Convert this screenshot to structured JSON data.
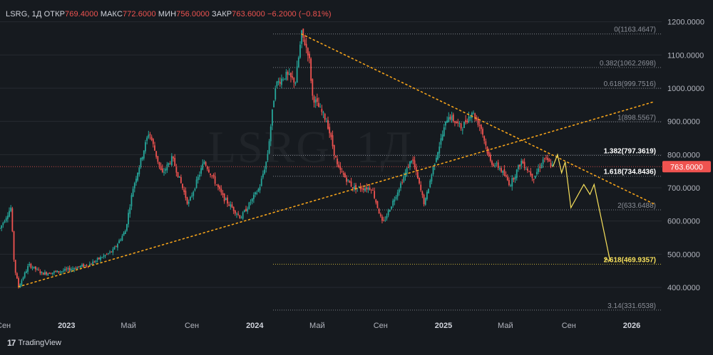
{
  "header": {
    "ticker": "LSRG, 1Д",
    "open_label": "ОТКР",
    "open": "769.4000",
    "high_label": "МАКС",
    "high": "772.6000",
    "low_label": "МИН",
    "low": "756.0000",
    "close_label": "ЗАКР",
    "close": "763.6000",
    "change": "−6.2000 (−0.81%)"
  },
  "watermark": "LSRG, 1Д",
  "footer": {
    "brand": "TradingView"
  },
  "colors": {
    "background": "#161a1f",
    "up": "#26a69a",
    "down": "#ef5350",
    "trendline": "#f5a31a",
    "projection": "#f7e05b",
    "price_label": "#ef5350"
  },
  "chart_data": {
    "type": "candlestick",
    "symbol": "LSRG",
    "timeframe": "1Д",
    "x_ticks": [
      "Сен",
      "2023",
      "Май",
      "Сен",
      "2024",
      "Май",
      "Сен",
      "2025",
      "Май",
      "Сен",
      "2026"
    ],
    "y_ticks": [
      "1200.0000",
      "1100.0000",
      "1000.0000",
      "900.0000",
      "800.0000",
      "700.0000",
      "600.0000",
      "500.0000",
      "400.0000"
    ],
    "ylim": [
      330,
      1230
    ],
    "last_price": "763.6000",
    "price_path": [
      {
        "date": "2022-08-25",
        "price": 578
      },
      {
        "date": "2022-09-15",
        "price": 640
      },
      {
        "date": "2022-09-22",
        "price": 460
      },
      {
        "date": "2022-09-30",
        "price": 402
      },
      {
        "date": "2022-10-20",
        "price": 468
      },
      {
        "date": "2022-11-15",
        "price": 442
      },
      {
        "date": "2022-12-20",
        "price": 448
      },
      {
        "date": "2023-02-15",
        "price": 470
      },
      {
        "date": "2023-04-01",
        "price": 510
      },
      {
        "date": "2023-04-25",
        "price": 570
      },
      {
        "date": "2023-05-10",
        "price": 700
      },
      {
        "date": "2023-06-10",
        "price": 870
      },
      {
        "date": "2023-07-05",
        "price": 740
      },
      {
        "date": "2023-07-25",
        "price": 790
      },
      {
        "date": "2023-08-25",
        "price": 650
      },
      {
        "date": "2023-09-25",
        "price": 780
      },
      {
        "date": "2023-11-01",
        "price": 670
      },
      {
        "date": "2023-12-05",
        "price": 610
      },
      {
        "date": "2024-01-10",
        "price": 700
      },
      {
        "date": "2024-01-25",
        "price": 790
      },
      {
        "date": "2024-02-10",
        "price": 1010
      },
      {
        "date": "2024-03-01",
        "price": 1040
      },
      {
        "date": "2024-03-20",
        "price": 1020
      },
      {
        "date": "2024-04-01",
        "price": 1163
      },
      {
        "date": "2024-04-15",
        "price": 1100
      },
      {
        "date": "2024-04-22",
        "price": 975
      },
      {
        "date": "2024-05-20",
        "price": 900
      },
      {
        "date": "2024-06-10",
        "price": 760
      },
      {
        "date": "2024-07-10",
        "price": 700
      },
      {
        "date": "2024-08-15",
        "price": 700
      },
      {
        "date": "2024-09-05",
        "price": 590
      },
      {
        "date": "2024-10-01",
        "price": 680
      },
      {
        "date": "2024-11-01",
        "price": 790
      },
      {
        "date": "2024-11-25",
        "price": 650
      },
      {
        "date": "2024-12-15",
        "price": 780
      },
      {
        "date": "2025-01-10",
        "price": 920
      },
      {
        "date": "2025-02-05",
        "price": 880
      },
      {
        "date": "2025-02-25",
        "price": 930
      },
      {
        "date": "2025-03-15",
        "price": 880
      },
      {
        "date": "2025-04-01",
        "price": 780
      },
      {
        "date": "2025-04-20",
        "price": 760
      },
      {
        "date": "2025-05-10",
        "price": 710
      },
      {
        "date": "2025-06-01",
        "price": 780
      },
      {
        "date": "2025-06-25",
        "price": 730
      },
      {
        "date": "2025-07-15",
        "price": 790
      },
      {
        "date": "2025-08-01",
        "price": 763.6
      }
    ],
    "projection": [
      {
        "date": "2025-08-01",
        "price": 763
      },
      {
        "date": "2025-08-10",
        "price": 800
      },
      {
        "date": "2025-08-18",
        "price": 745
      },
      {
        "date": "2025-08-25",
        "price": 778
      },
      {
        "date": "2025-09-05",
        "price": 640
      },
      {
        "date": "2025-09-30",
        "price": 710
      },
      {
        "date": "2025-10-12",
        "price": 680
      },
      {
        "date": "2025-10-20",
        "price": 710
      },
      {
        "date": "2025-11-20",
        "price": 480
      }
    ],
    "trendlines": [
      {
        "from": {
          "date": "2022-09-30",
          "price": 402
        },
        "to": {
          "date": "2026-02-15",
          "price": 960
        }
      },
      {
        "from": {
          "date": "2024-04-01",
          "price": 1163
        },
        "to": {
          "date": "2026-02-15",
          "price": 650
        }
      }
    ],
    "fib_levels": [
      {
        "ratio": "0",
        "label": "0(1163.4647)",
        "price": 1163.4647
      },
      {
        "ratio": "0.382",
        "label": "0.382(1062.2698)",
        "price": 1062.2698
      },
      {
        "ratio": "0.618",
        "label": "0.618(999.7516)",
        "price": 999.7516
      },
      {
        "ratio": "1",
        "label": "1(898.5567)",
        "price": 898.5567
      },
      {
        "ratio": "1.382",
        "label": "1.382(797.3619)",
        "price": 797.3619
      },
      {
        "ratio": "1.618",
        "label": "1.618(734.8436)",
        "price": 734.8436
      },
      {
        "ratio": "2",
        "label": "2(633.6488)",
        "price": 633.6488
      },
      {
        "ratio": "2.618",
        "label": "2.618(469.9357)",
        "price": 469.9357
      },
      {
        "ratio": "3.14",
        "label": "3.14(331.6538)",
        "price": 331.6538
      }
    ],
    "highlighted_fib": [
      "1.382",
      "1.618",
      "2.618"
    ]
  }
}
